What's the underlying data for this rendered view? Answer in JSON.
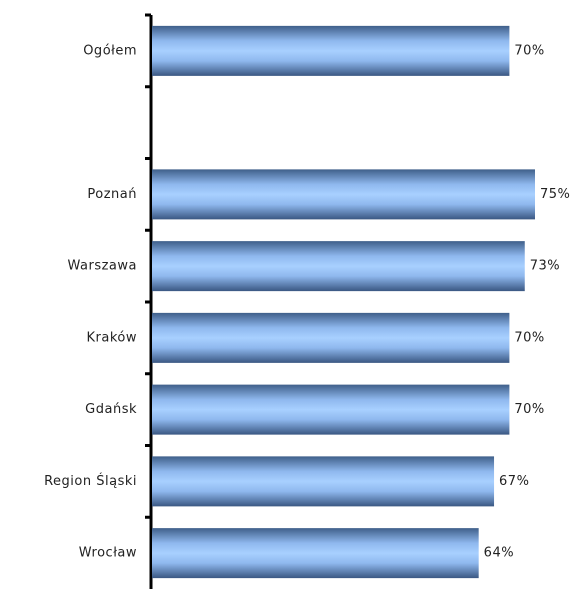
{
  "chart_data": {
    "type": "bar",
    "orientation": "horizontal",
    "categories": [
      "Ogółem",
      null,
      "Poznań",
      "Warszawa",
      "Kraków",
      "Gdańsk",
      "Region Śląski",
      "Wrocław"
    ],
    "values": [
      70,
      null,
      75,
      73,
      70,
      70,
      67,
      64
    ],
    "value_labels": [
      "70%",
      null,
      "75%",
      "73%",
      "70%",
      "70%",
      "67%",
      "64%"
    ],
    "color": "#9cc8ff"
  }
}
